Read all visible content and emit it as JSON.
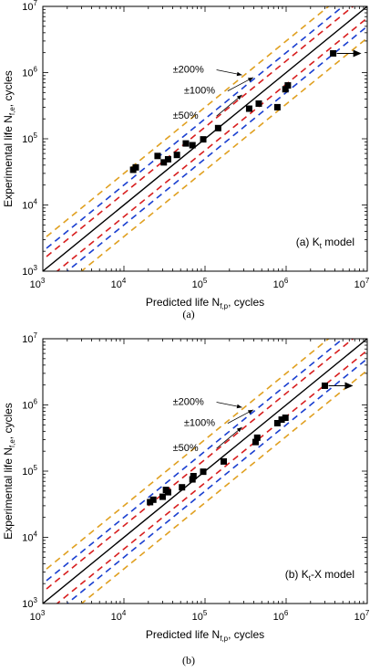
{
  "chart_data": [
    {
      "type": "scatter",
      "scale": "log-log",
      "xlabel": "Predicted life N",
      "xlabel_sub": "f,p",
      "xlabel_suffix": ", cycles",
      "ylabel": "Experimental life N",
      "ylabel_sub": "f,e",
      "ylabel_suffix": ", cycles",
      "xlim": [
        1000,
        10000000
      ],
      "ylim": [
        1000,
        10000000
      ],
      "x_ticks": [
        "10^3",
        "10^4",
        "10^5",
        "10^6",
        "10^7"
      ],
      "y_ticks": [
        "10^3",
        "10^4",
        "10^5",
        "10^6",
        "10^7"
      ],
      "model_label_prefix": "(a) K",
      "model_label_sup": "t",
      "model_label_suffix": " model",
      "caption": "(a)",
      "bands": [
        {
          "label": "±200%",
          "factor": 3,
          "color": "#e0a020"
        },
        {
          "label": "±100%",
          "factor": 2,
          "color": "#1a3fd0"
        },
        {
          "label": "±50%",
          "factor": 1.5,
          "color": "#d81e1e"
        }
      ],
      "points": [
        {
          "x": 13000,
          "y": 34000
        },
        {
          "x": 14000,
          "y": 37000
        },
        {
          "x": 26000,
          "y": 55000
        },
        {
          "x": 31000,
          "y": 44000
        },
        {
          "x": 35000,
          "y": 49000
        },
        {
          "x": 45000,
          "y": 57000
        },
        {
          "x": 58000,
          "y": 85000
        },
        {
          "x": 70000,
          "y": 80000
        },
        {
          "x": 95000,
          "y": 98000
        },
        {
          "x": 145000,
          "y": 145000
        },
        {
          "x": 350000,
          "y": 285000
        },
        {
          "x": 460000,
          "y": 340000
        },
        {
          "x": 780000,
          "y": 300000
        },
        {
          "x": 980000,
          "y": 560000
        },
        {
          "x": 1050000,
          "y": 640000
        },
        {
          "x": 3800000,
          "y": 1950000,
          "runout": true
        }
      ]
    },
    {
      "type": "scatter",
      "scale": "log-log",
      "xlabel": "Predicted life N",
      "xlabel_sub": "f,p",
      "xlabel_suffix": ", cycles",
      "ylabel": "Experimental life N",
      "ylabel_sub": "f,e",
      "ylabel_suffix": ", cycles",
      "xlim": [
        1000,
        10000000
      ],
      "ylim": [
        1000,
        10000000
      ],
      "x_ticks": [
        "10^3",
        "10^4",
        "10^5",
        "10^6",
        "10^7"
      ],
      "y_ticks": [
        "10^3",
        "10^4",
        "10^5",
        "10^6",
        "10^7"
      ],
      "model_label_prefix": "(b) K",
      "model_label_sup": "t",
      "model_label_suffix": "-X model",
      "caption": "(b)",
      "bands": [
        {
          "label": "±200%",
          "factor": 3,
          "color": "#e0a020"
        },
        {
          "label": "±100%",
          "factor": 2,
          "color": "#1a3fd0"
        },
        {
          "label": "±50%",
          "factor": 1.5,
          "color": "#d81e1e"
        }
      ],
      "points": [
        {
          "x": 21000,
          "y": 34000
        },
        {
          "x": 23000,
          "y": 37000
        },
        {
          "x": 30000,
          "y": 41000
        },
        {
          "x": 33000,
          "y": 52000
        },
        {
          "x": 35000,
          "y": 48000
        },
        {
          "x": 52000,
          "y": 57000
        },
        {
          "x": 70000,
          "y": 75000
        },
        {
          "x": 72000,
          "y": 84000
        },
        {
          "x": 95000,
          "y": 98000
        },
        {
          "x": 170000,
          "y": 140000
        },
        {
          "x": 420000,
          "y": 275000
        },
        {
          "x": 440000,
          "y": 320000
        },
        {
          "x": 780000,
          "y": 530000
        },
        {
          "x": 880000,
          "y": 600000
        },
        {
          "x": 980000,
          "y": 640000
        },
        {
          "x": 3000000,
          "y": 1950000,
          "runout": true
        }
      ]
    }
  ]
}
